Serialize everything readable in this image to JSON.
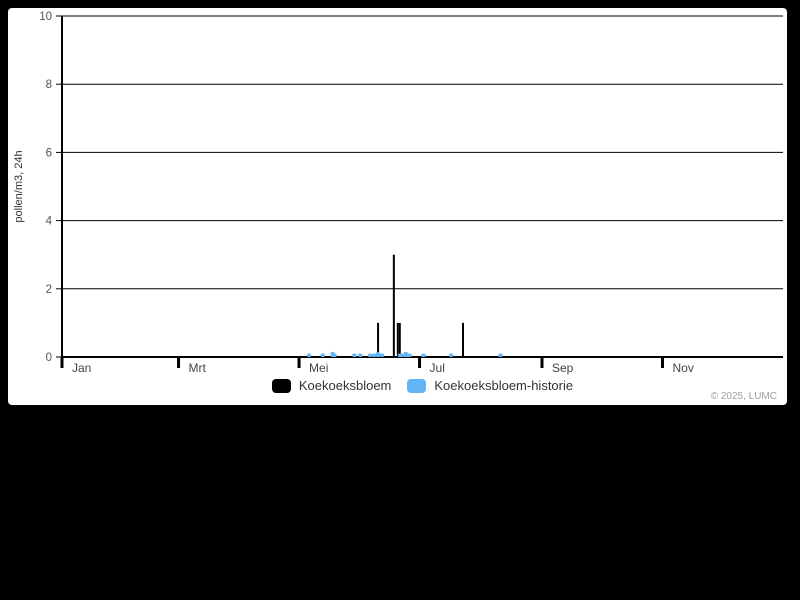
{
  "page": {
    "background_color": "#000000",
    "card_background_color": "#ffffff"
  },
  "footer": {
    "copyright": "© 2025, LUMC"
  },
  "chart_data": {
    "type": "bar",
    "title": "",
    "xlabel": "",
    "ylabel": "pollen/m3, 24h",
    "ylim": [
      0,
      10
    ],
    "yticks": [
      0,
      2,
      4,
      6,
      8,
      10
    ],
    "xticks": [
      {
        "label": "Jan",
        "doy": 1
      },
      {
        "label": "Mrt",
        "doy": 60
      },
      {
        "label": "Mei",
        "doy": 121
      },
      {
        "label": "Jul",
        "doy": 182
      },
      {
        "label": "Sep",
        "doy": 244
      },
      {
        "label": "Nov",
        "doy": 305
      }
    ],
    "grid": true,
    "grid_color": "#000000",
    "axis_color": "#000000",
    "tick_label_color": "#545454",
    "month_label_color": "#444444",
    "legend_position": "bottom",
    "series": [
      {
        "name": "Koekoeksbloem",
        "color": "#000000",
        "points": [
          {
            "date": "Jun 10",
            "doy": 161,
            "value": 1
          },
          {
            "date": "Jun 18",
            "doy": 169,
            "value": 3
          },
          {
            "date": "Jun 20",
            "doy": 171,
            "value": 1
          },
          {
            "date": "Jun 21",
            "doy": 172,
            "value": 1
          },
          {
            "date": "Jul 23",
            "doy": 204,
            "value": 1
          }
        ]
      },
      {
        "name": "Koekoeksbloem-historie",
        "color": "#64b5f6",
        "points": [
          {
            "date": "May 6",
            "doy": 126,
            "value": 0.1
          },
          {
            "date": "May 13",
            "doy": 133,
            "value": 0.1
          },
          {
            "date": "May 18",
            "doy": 138,
            "value": 0.15
          },
          {
            "date": "May 19",
            "doy": 139,
            "value": 0.1
          },
          {
            "date": "May 29",
            "doy": 149,
            "value": 0.1
          },
          {
            "date": "Jun 1",
            "doy": 152,
            "value": 0.1
          },
          {
            "date": "Jun 6",
            "doy": 157,
            "value": 0.1
          },
          {
            "date": "Jun 8",
            "doy": 159,
            "value": 0.1
          },
          {
            "date": "Jun 10",
            "doy": 161,
            "value": 0.15
          },
          {
            "date": "Jun 12",
            "doy": 163,
            "value": 0.1
          },
          {
            "date": "Jun 21",
            "doy": 172,
            "value": 0.1
          },
          {
            "date": "Jun 22",
            "doy": 173,
            "value": 0.1
          },
          {
            "date": "Jun 24",
            "doy": 175,
            "value": 0.15
          },
          {
            "date": "Jun 25",
            "doy": 176,
            "value": 0.1
          },
          {
            "date": "Jun 26",
            "doy": 177,
            "value": 0.1
          },
          {
            "date": "Jul 3",
            "doy": 184,
            "value": 0.1
          },
          {
            "date": "Jul 17",
            "doy": 198,
            "value": 0.1
          },
          {
            "date": "Aug 11",
            "doy": 223,
            "value": 0.1
          }
        ]
      }
    ]
  }
}
